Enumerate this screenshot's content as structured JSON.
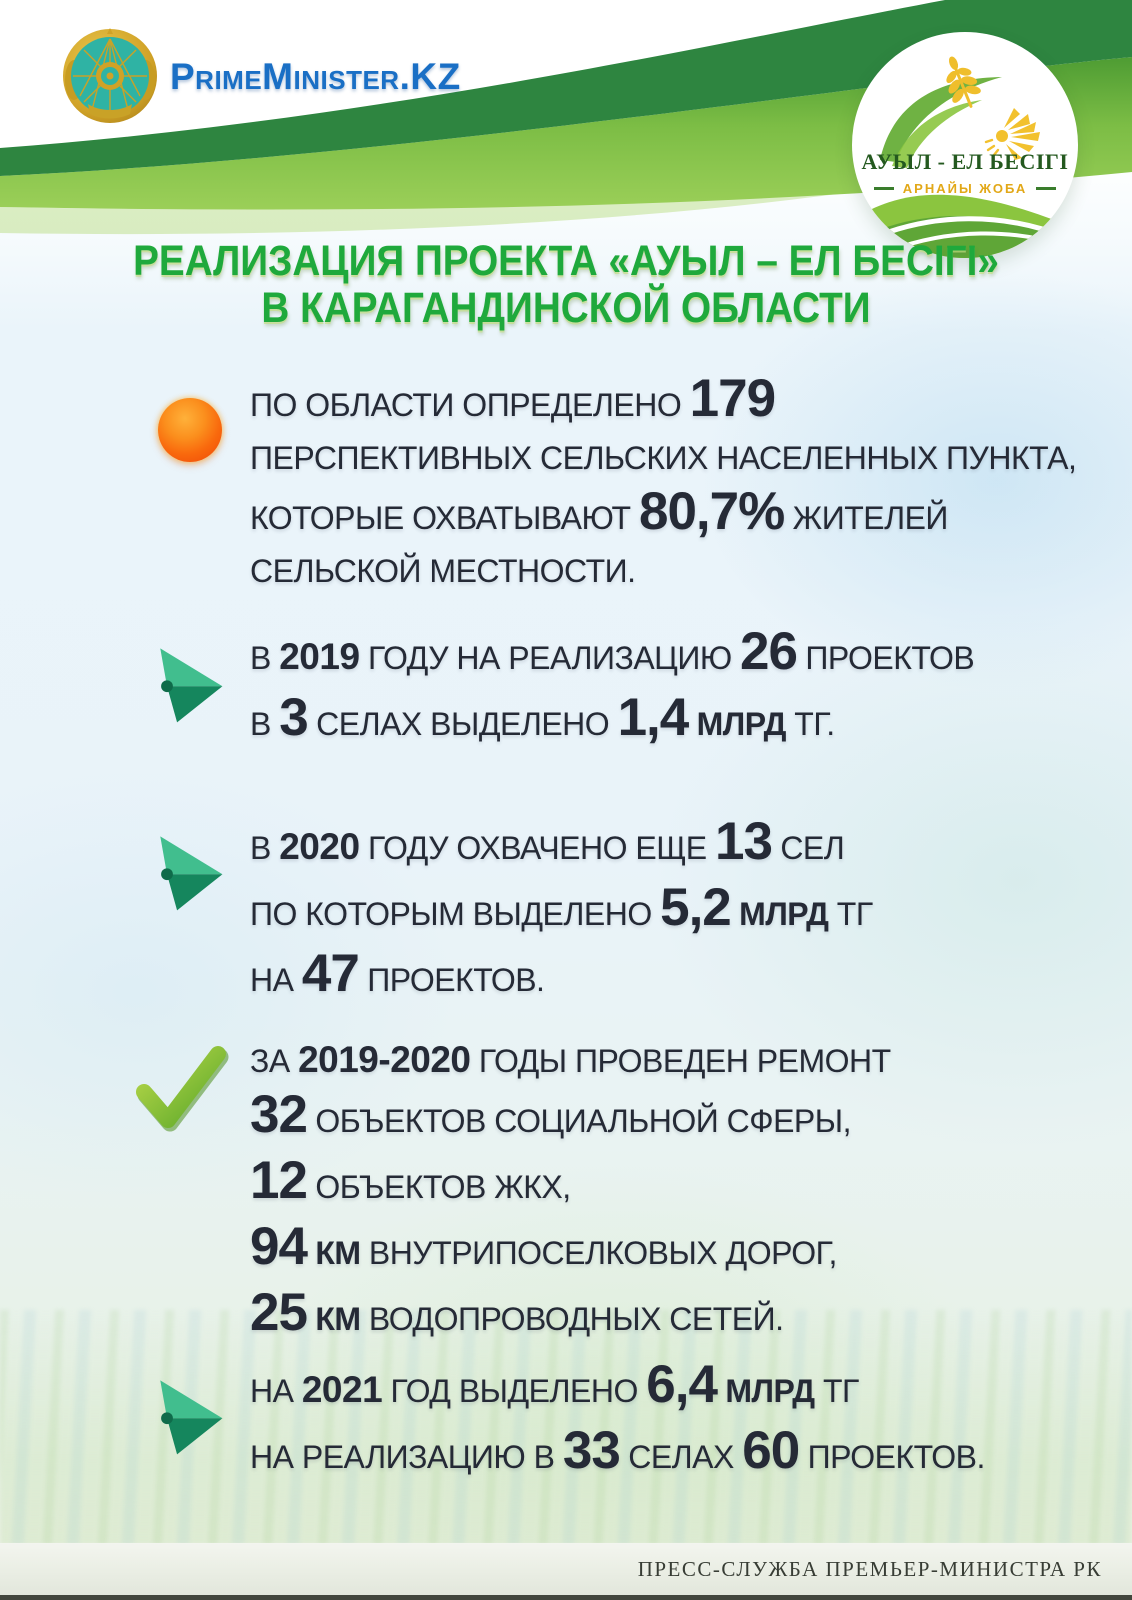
{
  "header": {
    "brand": "PrimeMinister.KZ",
    "emblem_icon": "kazakhstan-state-emblem"
  },
  "badge": {
    "title": "АУЫЛ - ЕЛ БЕСІГІ",
    "subtitle": "АРНАЙЫ ЖОБА",
    "icon": "wheat-sun-leaves-logo"
  },
  "title": {
    "line1": "РЕАЛИЗАЦИЯ ПРОЕКТА «АУЫЛ – ЕЛ БЕСІГІ»",
    "line2": "В КАРАГАНДИНСКОЙ ОБЛАСТИ"
  },
  "bullets": [
    {
      "icon": "orange-dot",
      "lines": [
        [
          {
            "t": "ПО ОБЛАСТИ ОПРЕДЕЛЕНО ",
            "s": "n"
          },
          {
            "t": "179",
            "s": "num"
          }
        ],
        [
          {
            "t": "ПЕРСПЕКТИВНЫХ СЕЛЬСКИХ НАСЕЛЕННЫХ ПУНКТА,",
            "s": "n"
          }
        ],
        [
          {
            "t": "КОТОРЫЕ ОХВАТЫВАЮТ ",
            "s": "n"
          },
          {
            "t": "80,7%",
            "s": "num"
          },
          {
            "t": " ЖИТЕЛЕЙ",
            "s": "n"
          }
        ],
        [
          {
            "t": "СЕЛЬСКОЙ МЕСТНОСТИ.",
            "s": "n"
          }
        ]
      ]
    },
    {
      "icon": "green-arrow",
      "lines": [
        [
          {
            "t": "В ",
            "s": "n"
          },
          {
            "t": "2019",
            "s": "yr"
          },
          {
            "t": " ГОДУ НА РЕАЛИЗАЦИЮ ",
            "s": "n"
          },
          {
            "t": "26",
            "s": "num"
          },
          {
            "t": " ПРОЕКТОВ",
            "s": "n"
          }
        ],
        [
          {
            "t": "В ",
            "s": "n"
          },
          {
            "t": "3",
            "s": "num"
          },
          {
            "t": " СЕЛАХ ВЫДЕЛЕНО ",
            "s": "n"
          },
          {
            "t": "1,4",
            "s": "num"
          },
          {
            "t": " МЛРД",
            "s": "unit"
          },
          {
            "t": " ТГ.",
            "s": "n"
          }
        ]
      ]
    },
    {
      "icon": "green-arrow",
      "lines": [
        [
          {
            "t": "В ",
            "s": "n"
          },
          {
            "t": "2020",
            "s": "yr"
          },
          {
            "t": " ГОДУ ОХВАЧЕНО ЕЩЕ ",
            "s": "n"
          },
          {
            "t": "13",
            "s": "num"
          },
          {
            "t": " СЕЛ",
            "s": "n"
          }
        ],
        [
          {
            "t": "ПО КОТОРЫМ ВЫДЕЛЕНО ",
            "s": "n"
          },
          {
            "t": "5,2",
            "s": "num"
          },
          {
            "t": " МЛРД",
            "s": "unit"
          },
          {
            "t": " ТГ",
            "s": "n"
          }
        ],
        [
          {
            "t": "НА ",
            "s": "n"
          },
          {
            "t": "47",
            "s": "num"
          },
          {
            "t": " ПРОЕКТОВ.",
            "s": "n"
          }
        ]
      ]
    },
    {
      "icon": "green-check",
      "lines": [
        [
          {
            "t": "ЗА ",
            "s": "n"
          },
          {
            "t": "2019-2020",
            "s": "yr"
          },
          {
            "t": " ГОДЫ ПРОВЕДЕН РЕМОНТ",
            "s": "n"
          }
        ],
        [
          {
            "t": "32",
            "s": "num"
          },
          {
            "t": " ОБЪЕКТОВ СОЦИАЛЬНОЙ СФЕРЫ,",
            "s": "n"
          }
        ],
        [
          {
            "t": "12",
            "s": "num"
          },
          {
            "t": " ОБЪЕКТОВ ЖКХ,",
            "s": "n"
          }
        ],
        [
          {
            "t": "94",
            "s": "num"
          },
          {
            "t": " КМ",
            "s": "unit"
          },
          {
            "t": " ВНУТРИПОСЕЛКОВЫХ ДОРОГ,",
            "s": "n"
          }
        ],
        [
          {
            "t": "25",
            "s": "num"
          },
          {
            "t": " КМ",
            "s": "unit"
          },
          {
            "t": " ВОДОПРОВОДНЫХ СЕТЕЙ.",
            "s": "n"
          }
        ]
      ]
    },
    {
      "icon": "green-arrow",
      "lines": [
        [
          {
            "t": "НА ",
            "s": "n"
          },
          {
            "t": "2021",
            "s": "yr"
          },
          {
            "t": " ГОД ВЫДЕЛЕНО ",
            "s": "n"
          },
          {
            "t": "6,4",
            "s": "num"
          },
          {
            "t": " МЛРД",
            "s": "unit"
          },
          {
            "t": " ТГ",
            "s": "n"
          }
        ],
        [
          {
            "t": "НА РЕАЛИЗАЦИЮ В ",
            "s": "n"
          },
          {
            "t": "33",
            "s": "num"
          },
          {
            "t": " СЕЛАХ ",
            "s": "n"
          },
          {
            "t": "60",
            "s": "num"
          },
          {
            "t": " ПРОЕКТОВ.",
            "s": "n"
          }
        ]
      ]
    }
  ],
  "footer": {
    "credit": "ПРЕСС-СЛУЖБА ПРЕМЬЕР-МИНИСТРА РК"
  },
  "colors": {
    "title_green": "#1fa93c",
    "wave_dark_green": "#2e8540",
    "wave_light_green": "#8cc544",
    "brand_blue": "#1a6fc5",
    "text_dark": "#252a36",
    "orange_dot": "#f9690d",
    "arrow_light_green": "#41be8e",
    "arrow_dark_green": "#15865d",
    "check_green": "#76b82a",
    "badge_text_green": "#24591f",
    "badge_gold": "#e2a818",
    "footer_text": "#383d35",
    "footer_strip": "#e9ede3",
    "bottom_line": "#41463c"
  }
}
